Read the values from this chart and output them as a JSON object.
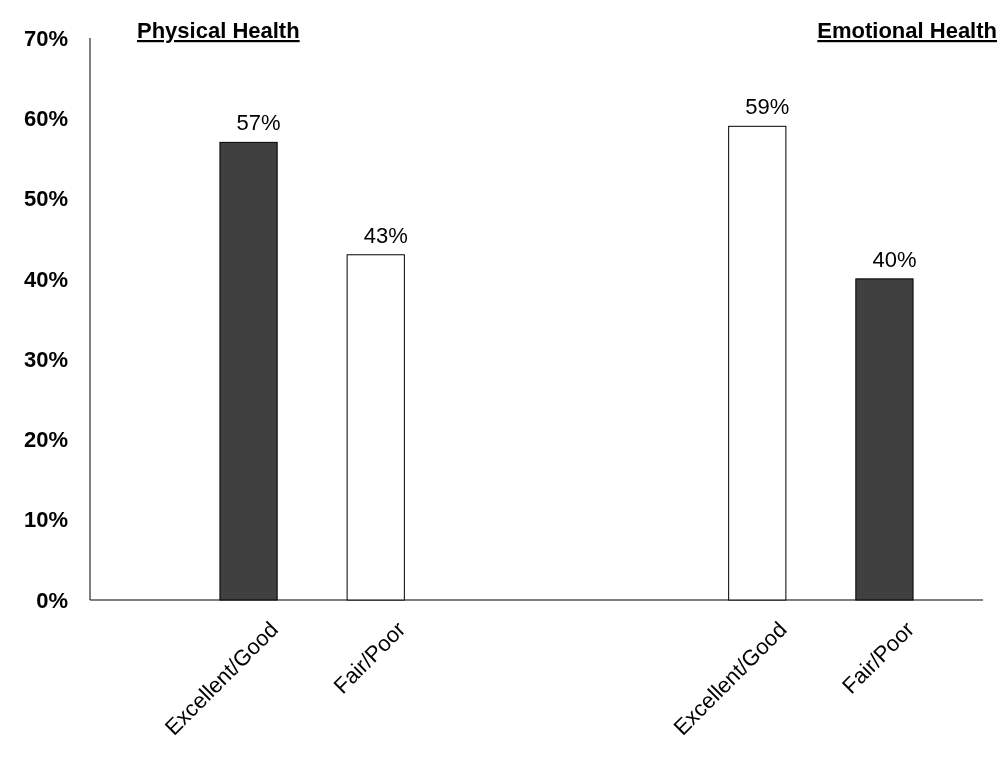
{
  "chart_data": {
    "type": "bar",
    "categories": [
      "Excellent/Good",
      "Fair/Poor",
      null,
      null,
      "Excellent/Good",
      "Fair/Poor"
    ],
    "values": [
      57,
      43,
      null,
      null,
      59,
      40
    ],
    "colors": [
      "#404040",
      "#ffffff",
      null,
      null,
      "#ffffff",
      "#404040"
    ],
    "ylim": [
      0,
      70
    ],
    "yticks": [
      {
        "value": 0,
        "label": "0%"
      },
      {
        "value": 10,
        "label": "10%"
      },
      {
        "value": 20,
        "label": "20%"
      },
      {
        "value": 30,
        "label": "30%"
      },
      {
        "value": 40,
        "label": "40%"
      },
      {
        "value": 50,
        "label": "50%"
      },
      {
        "value": 60,
        "label": "60%"
      },
      {
        "value": 70,
        "label": "70%"
      }
    ],
    "value_labels": [
      "57%",
      "43%",
      null,
      null,
      "59%",
      "40%"
    ],
    "annotations": [
      "Physical Health",
      "Emotional Health"
    ],
    "grid": false
  }
}
